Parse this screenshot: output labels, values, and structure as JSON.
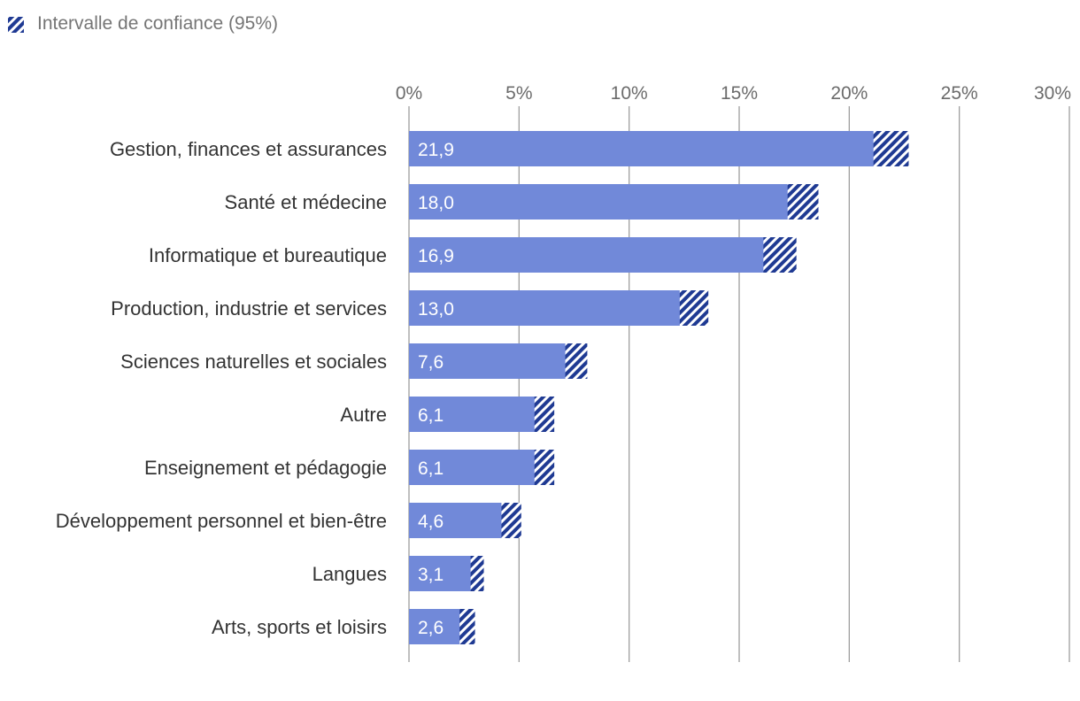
{
  "legend": {
    "label": "Intervalle de confiance (95%)",
    "icon": "hatched-square-icon"
  },
  "colors": {
    "bar": "#7189d9",
    "ci_dark": "#1f3a93",
    "grid": "#9e9e9e",
    "category_text": "#333333",
    "tick_text": "#6b6b6b",
    "legend_text": "#757575",
    "value_text": "#ffffff"
  },
  "chart_data": {
    "type": "bar",
    "orientation": "horizontal",
    "title": "",
    "xlabel": "",
    "ylabel": "",
    "xlim": [
      0,
      30
    ],
    "x_ticks": [
      0,
      5,
      10,
      15,
      20,
      25,
      30
    ],
    "x_tick_labels": [
      "0%",
      "5%",
      "10%",
      "15%",
      "20%",
      "25%",
      "30%"
    ],
    "axis_position": "top",
    "grid": true,
    "legend_position": "top-left",
    "categories": [
      "Gestion, finances et assurances",
      "Santé et médecine",
      "Informatique et bureautique",
      "Production, industrie et services",
      "Sciences naturelles et sociales",
      "Autre",
      "Enseignement et pédagogie",
      "Développement personnel et bien-être",
      "Langues",
      "Arts, sports et loisirs"
    ],
    "values": [
      21.9,
      18.0,
      16.9,
      13.0,
      7.6,
      6.1,
      6.1,
      4.6,
      3.1,
      2.6
    ],
    "value_labels": [
      "21,9",
      "18,0",
      "16,9",
      "13,0",
      "7,6",
      "6,1",
      "6,1",
      "4,6",
      "3,1",
      "2,6"
    ],
    "ci_low": [
      21.1,
      17.2,
      16.1,
      12.3,
      7.1,
      5.7,
      5.7,
      4.2,
      2.8,
      2.3
    ],
    "ci_high": [
      22.7,
      18.6,
      17.6,
      13.6,
      8.1,
      6.6,
      6.6,
      5.1,
      3.4,
      3.0
    ]
  }
}
